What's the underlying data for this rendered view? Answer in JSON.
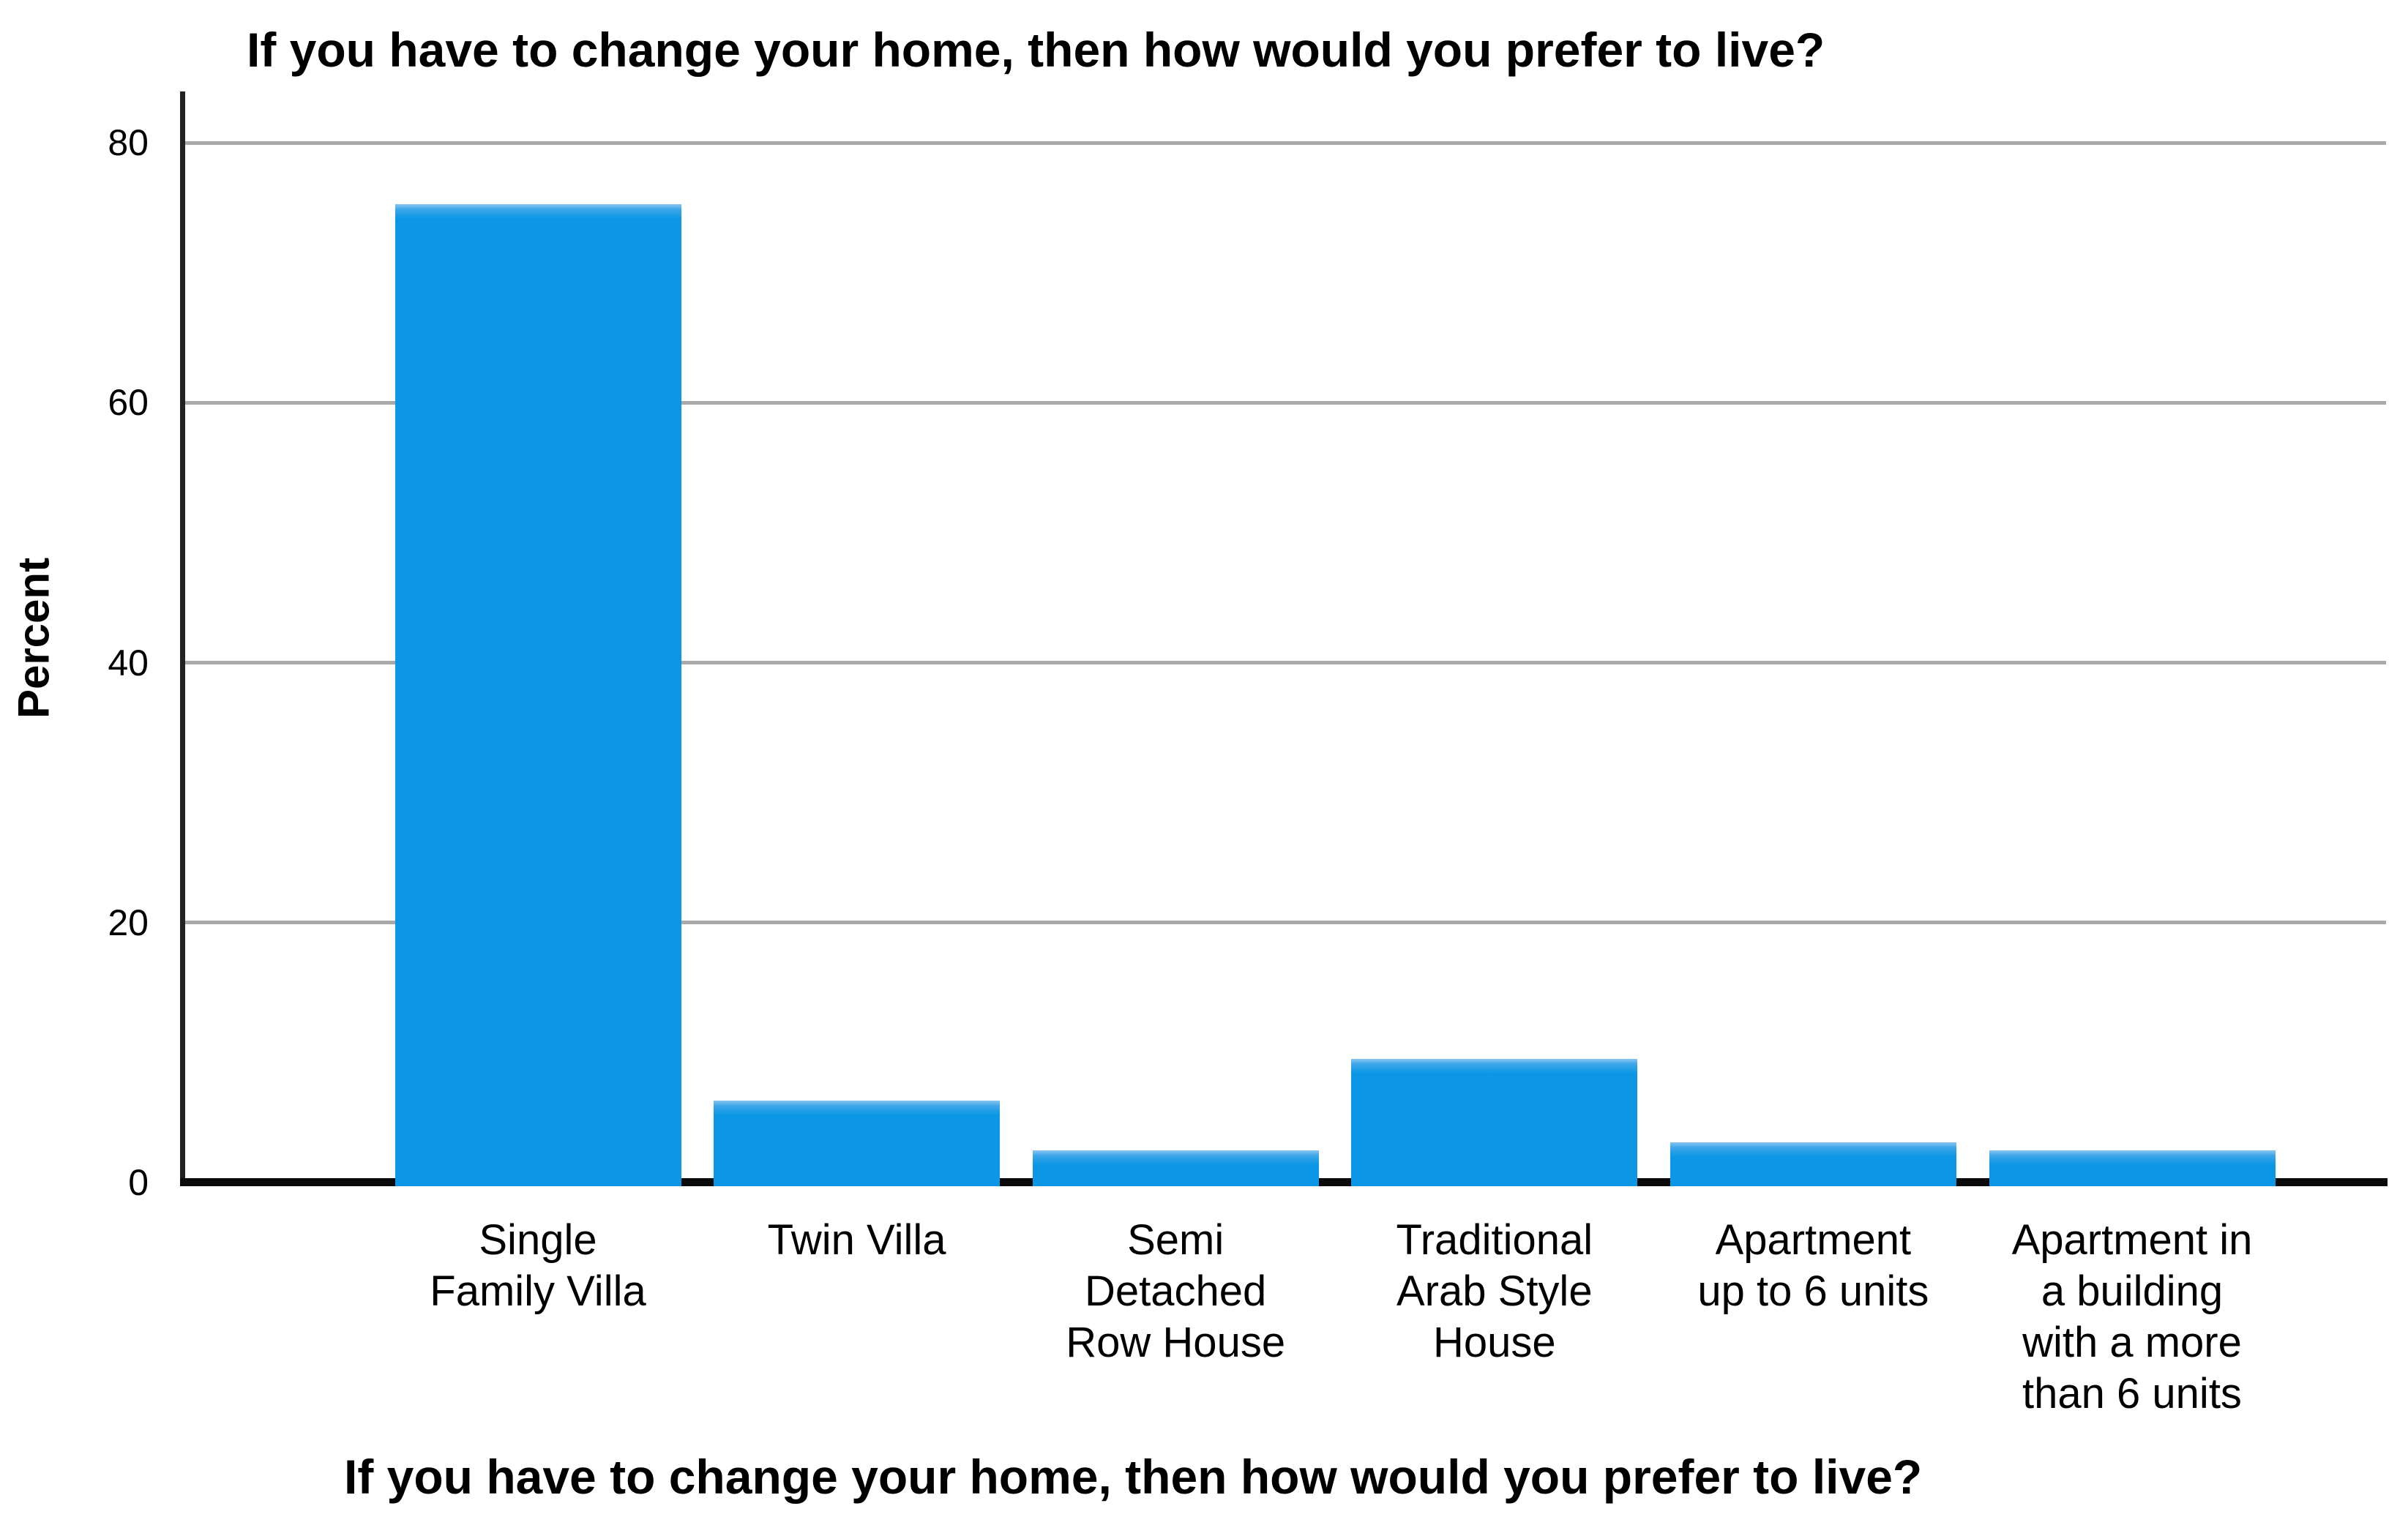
{
  "chart": {
    "title": "If you have to change your home, then how would you prefer to live?",
    "y_axis_title": "Percent",
    "x_axis_title": "If you have to change your home, then how would you prefer to live?"
  },
  "chart_data": {
    "type": "bar",
    "title": "If you have to change your home, then how would you prefer to live?",
    "xlabel": "If you have to change your home, then how would you prefer to live?",
    "ylabel": "Percent",
    "categories": [
      "Single Family Villa",
      "Twin Villa",
      "Semi Detached Row House",
      "Traditional Arab Style House",
      "Apartment up to 6 units",
      "Apartment in a building with a more than 6 units"
    ],
    "category_label_lines": [
      [
        "Single",
        "Family Villa"
      ],
      [
        "Twin Villa"
      ],
      [
        "Semi",
        "Detached",
        "Row House"
      ],
      [
        "Traditional",
        "Arab Style",
        "House"
      ],
      [
        "Apartment",
        "up to 6 units"
      ],
      [
        "Apartment in",
        "a building",
        "with a more",
        "than 6 units"
      ]
    ],
    "values": [
      75.3,
      6.3,
      2.5,
      9.5,
      3.1,
      2.5
    ],
    "yticks": [
      0,
      20,
      40,
      60,
      80
    ],
    "ylim": [
      0,
      84
    ],
    "grid": true,
    "legend": false,
    "bar_color": "#0b97e5",
    "bar_top_highlight": "#88c5f0",
    "gridline_color": "#a9a9a9",
    "axis_color": "#0a0a0a",
    "background_color": "#ffffff"
  }
}
